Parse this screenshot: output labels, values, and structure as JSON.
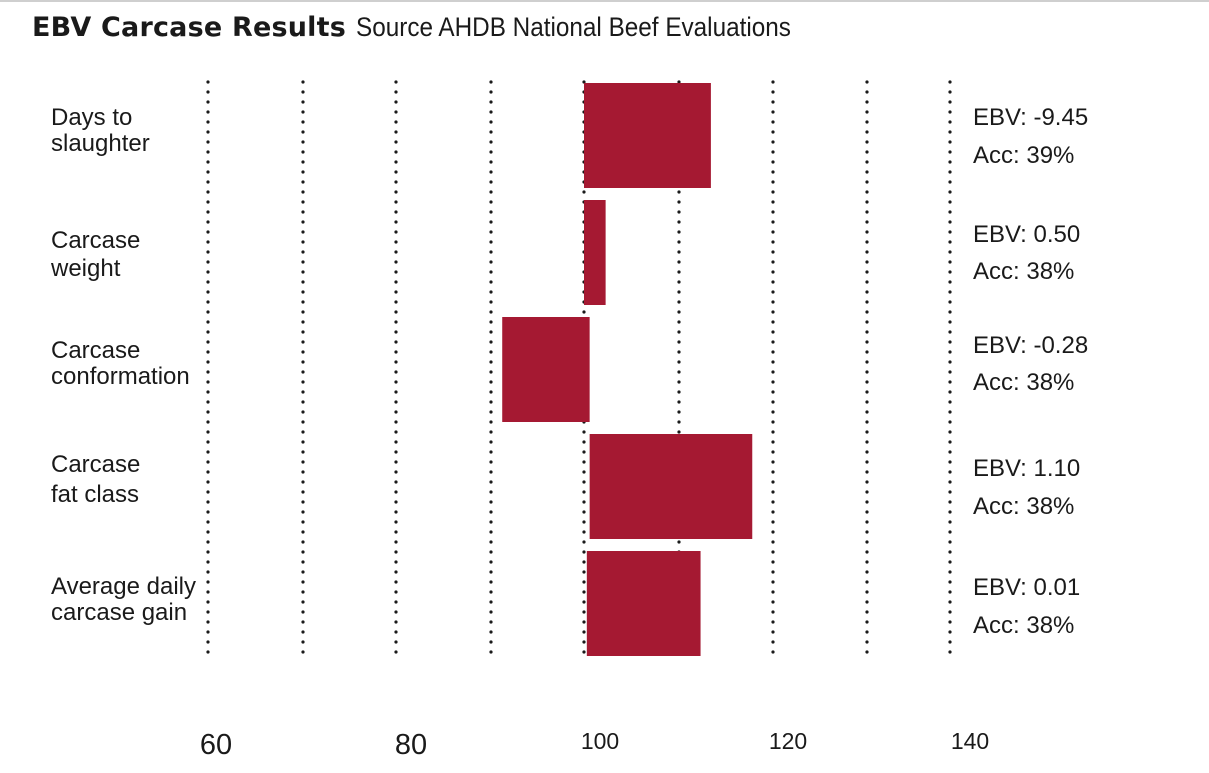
{
  "chart_data": {
    "type": "bar",
    "title": "EBV Carcase Results",
    "subtitle": "Source AHDB National Beef Evaluations",
    "baseline": 100,
    "xlim": [
      60,
      140
    ],
    "x_ticks": [
      60,
      80,
      100,
      120,
      140
    ],
    "categories": [
      {
        "label_lines": [
          "Days to",
          "slaughter"
        ],
        "start": 100,
        "end": 113.5,
        "ebv": "EBV: -9.45",
        "acc": "Acc: 39%"
      },
      {
        "label_lines": [
          "Carcase",
          "weight"
        ],
        "start": 100,
        "end": 102.3,
        "ebv": "EBV: 0.50",
        "acc": "Acc: 38%"
      },
      {
        "label_lines": [
          "Carcase",
          "conformation"
        ],
        "start": 91.3,
        "end": 100.6,
        "ebv": "EBV: -0.28",
        "acc": "Acc: 38%"
      },
      {
        "label_lines": [
          "Carcase",
          "fat class"
        ],
        "start": 100.6,
        "end": 117.9,
        "ebv": "EBV: 1.10",
        "acc": "Acc: 38%"
      },
      {
        "label_lines": [
          "Average daily",
          "carcase gain"
        ],
        "start": 100.3,
        "end": 112.4,
        "ebv": "EBV: 0.01",
        "acc": "Acc: 38%"
      }
    ],
    "colors": {
      "bar": "#a51932",
      "gridline": "#1a1a1a"
    }
  }
}
